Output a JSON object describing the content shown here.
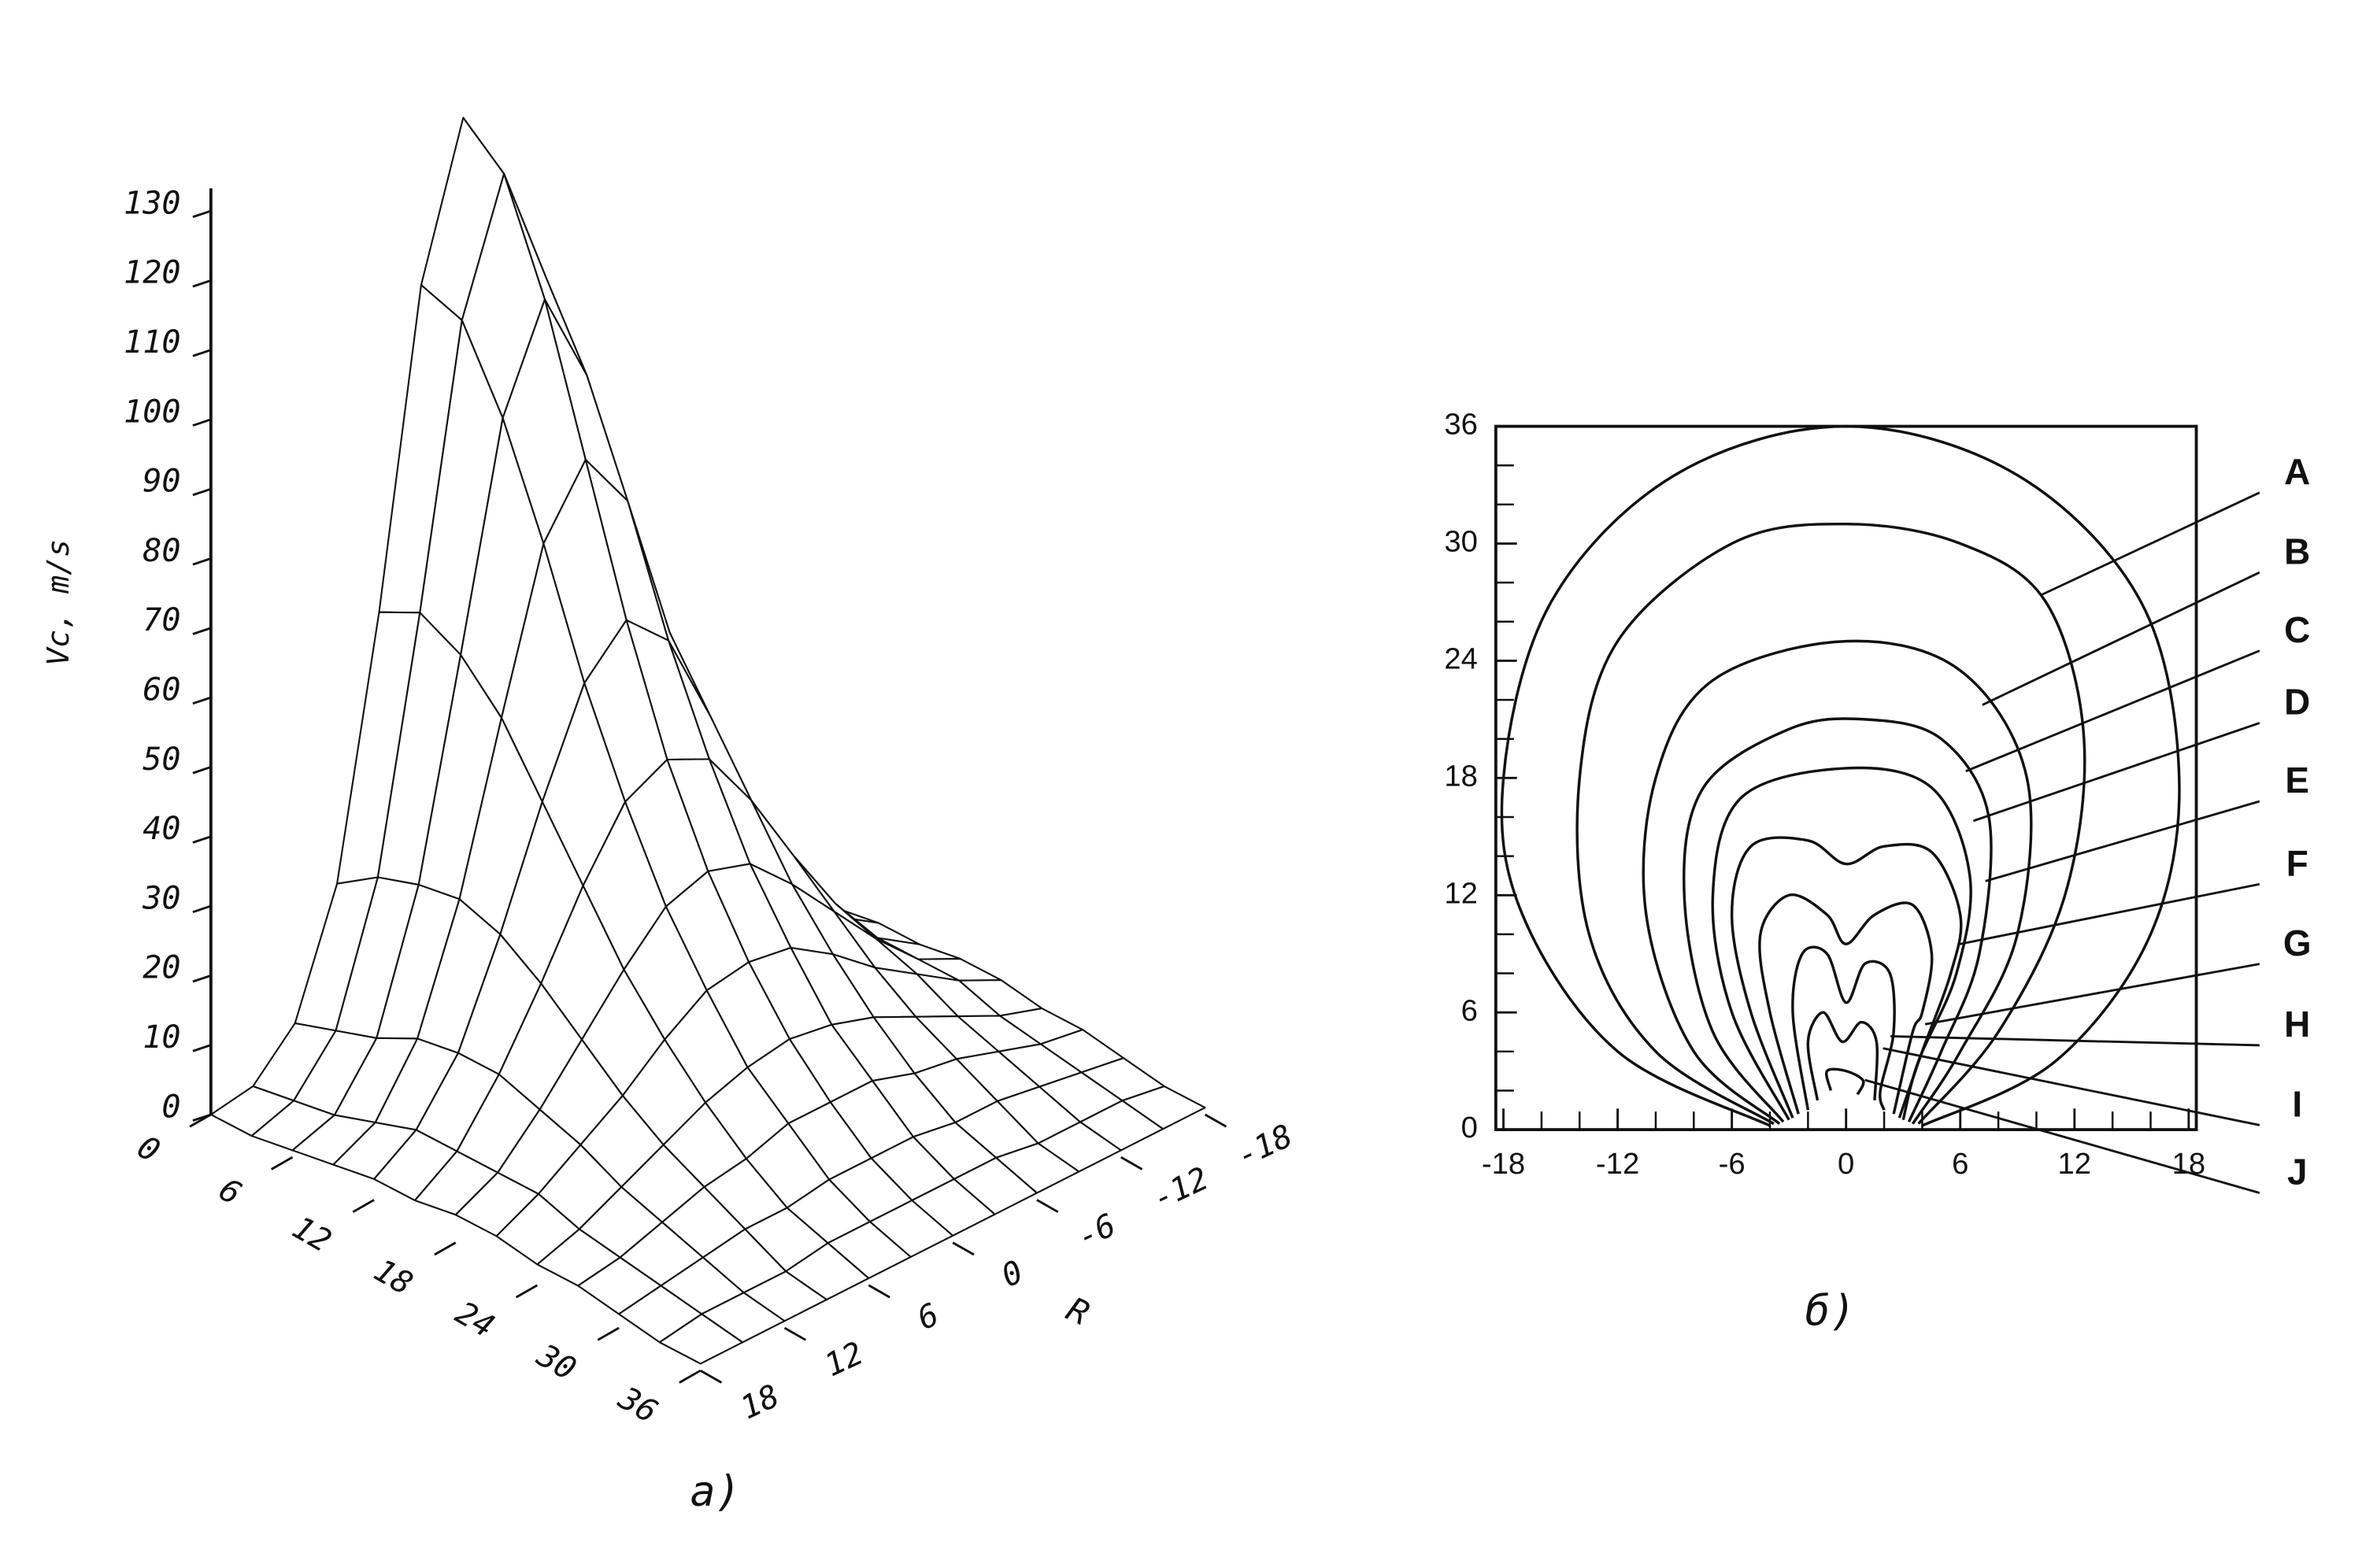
{
  "chart_data": [
    {
      "type": "surface",
      "zlabel": "Vc, m/s",
      "ylabel": "R",
      "caption": "a)",
      "x": [
        0,
        3,
        6,
        9,
        12,
        15,
        18,
        21,
        24,
        27,
        30,
        33,
        36
      ],
      "y": [
        -18,
        -15,
        -12,
        -9,
        -6,
        -3,
        0,
        3,
        6,
        9,
        12,
        15,
        18
      ],
      "z": [
        [
          0,
          1,
          7,
          24,
          60,
          104,
          125,
          104,
          60,
          24,
          7,
          1,
          0
        ],
        [
          0,
          2,
          9,
          28,
          63,
          102,
          120,
          102,
          63,
          28,
          9,
          2,
          0
        ],
        [
          1,
          3,
          11,
          30,
          60,
          91,
          105,
          91,
          60,
          30,
          11,
          3,
          1
        ],
        [
          2,
          5,
          14,
          31,
          54,
          76,
          85,
          76,
          54,
          31,
          14,
          5,
          2
        ],
        [
          3,
          7,
          15,
          29,
          45,
          59,
          65,
          59,
          45,
          29,
          15,
          7,
          3
        ],
        [
          3,
          7,
          15,
          25,
          36,
          45,
          48,
          45,
          36,
          25,
          15,
          7,
          3
        ],
        [
          4,
          7,
          13,
          20,
          27,
          33,
          35,
          33,
          27,
          20,
          13,
          7,
          4
        ],
        [
          4,
          7,
          11,
          15,
          20,
          24,
          25,
          24,
          20,
          15,
          11,
          7,
          4
        ],
        [
          3,
          5,
          8,
          11,
          14,
          16,
          17,
          16,
          14,
          11,
          8,
          5,
          3
        ],
        [
          3,
          4,
          6,
          8,
          9,
          11,
          11,
          11,
          9,
          8,
          6,
          4,
          3
        ],
        [
          2,
          3,
          4,
          5,
          5,
          6,
          6,
          6,
          5,
          5,
          4,
          3,
          2
        ],
        [
          1,
          2,
          2,
          2,
          3,
          3,
          3,
          3,
          3,
          2,
          2,
          2,
          1
        ],
        [
          1,
          1,
          1,
          1,
          1,
          1,
          1,
          1,
          1,
          1,
          1,
          1,
          1
        ]
      ],
      "xlim": [
        0,
        36
      ],
      "ylim": [
        18,
        -18
      ],
      "zlim": [
        0,
        130
      ],
      "xticks": [
        0,
        6,
        12,
        18,
        24,
        30,
        36
      ],
      "yticks": [
        18,
        12,
        6,
        0,
        -6,
        -12,
        -18
      ],
      "zticks": [
        0,
        10,
        20,
        30,
        40,
        50,
        60,
        70,
        80,
        90,
        100,
        110,
        120,
        130
      ]
    },
    {
      "type": "contour",
      "caption": "б)",
      "xlim": [
        -18.4,
        18.4
      ],
      "ylim": [
        0,
        36
      ],
      "xticks": [
        -18,
        -12,
        -6,
        0,
        6,
        12,
        18
      ],
      "yticks": [
        0,
        6,
        12,
        18,
        24,
        30,
        36
      ],
      "xminorticks": [
        -16,
        -14,
        -10,
        -8,
        -4,
        -2,
        2,
        4,
        8,
        10,
        14,
        16
      ],
      "yminorticks": [
        2,
        4,
        8,
        10,
        14,
        16,
        20,
        22,
        26,
        28,
        32,
        34
      ],
      "color": "#111111",
      "series": [
        {
          "name": "A",
          "x": [
            -4,
            -12,
            -17,
            -18,
            -15.5,
            -9,
            0,
            9,
            15.5,
            17.5,
            16,
            11,
            4
          ],
          "y": [
            0.2,
            4,
            11,
            18,
            27,
            33.5,
            36,
            33.5,
            27,
            18,
            10,
            3.5,
            0.2
          ]
        },
        {
          "name": "B",
          "x": [
            -3.8,
            -10,
            -13.5,
            -14,
            -12,
            -6,
            0,
            6,
            10.5,
            12.5,
            11.5,
            8,
            3.8
          ],
          "y": [
            0.3,
            4,
            10,
            18,
            25,
            30,
            31,
            30,
            27,
            20,
            12,
            5,
            0.3
          ]
        },
        {
          "name": "C",
          "x": [
            -3.5,
            -8,
            -10.5,
            -10,
            -7,
            0,
            6,
            9.5,
            9,
            6,
            3.5
          ],
          "y": [
            0.3,
            4,
            11,
            18,
            23,
            25,
            23.5,
            18,
            10,
            4,
            0.3
          ]
        },
        {
          "name": "D",
          "x": [
            -3.3,
            -7,
            -8.5,
            -7.5,
            -3,
            1,
            5,
            7.5,
            7,
            5,
            3.3
          ],
          "y": [
            0.4,
            5,
            12,
            17.5,
            20.5,
            21,
            20,
            16,
            9,
            4,
            0.4
          ]
        },
        {
          "name": "E",
          "x": [
            -3,
            -6,
            -7,
            -5.5,
            0,
            4.5,
            6.5,
            5.8,
            3.8,
            3
          ],
          "y": [
            0.5,
            6,
            12,
            17,
            18.5,
            17.5,
            13,
            8,
            3.5,
            0.5
          ]
        },
        {
          "name": "F",
          "x": [
            -2.8,
            -5,
            -6,
            -5,
            -2,
            0,
            2,
            4.5,
            6,
            5.5,
            4,
            2.8
          ],
          "y": [
            0.6,
            6,
            11,
            14.5,
            14.8,
            13.6,
            14.5,
            14.2,
            11,
            8,
            4,
            0.6
          ]
        },
        {
          "name": "G",
          "x": [
            -2.5,
            -4,
            -4.5,
            -3,
            -1,
            0,
            1.5,
            3.5,
            4.5,
            4,
            3.5,
            2.5
          ],
          "y": [
            0.8,
            6,
            10,
            12,
            11,
            9.5,
            11,
            11.5,
            9,
            6,
            5,
            0.8
          ]
        },
        {
          "name": "H",
          "x": [
            -2,
            -2.8,
            -2.3,
            -1,
            0,
            1,
            2.3,
            2.5,
            1.8,
            2
          ],
          "y": [
            1,
            6,
            9,
            9,
            6.5,
            8.5,
            8,
            5,
            2,
            1
          ]
        },
        {
          "name": "I",
          "x": [
            -1.5,
            -2,
            -1.2,
            -0.2,
            0.8,
            1.6,
            1.5
          ],
          "y": [
            1.5,
            4.5,
            6,
            4.5,
            5.5,
            4.5,
            1.5
          ]
        },
        {
          "name": "J",
          "x": [
            -0.8,
            -1,
            0,
            0.9,
            0.6
          ],
          "y": [
            2,
            3,
            3,
            2.5,
            1.8
          ]
        }
      ]
    }
  ]
}
